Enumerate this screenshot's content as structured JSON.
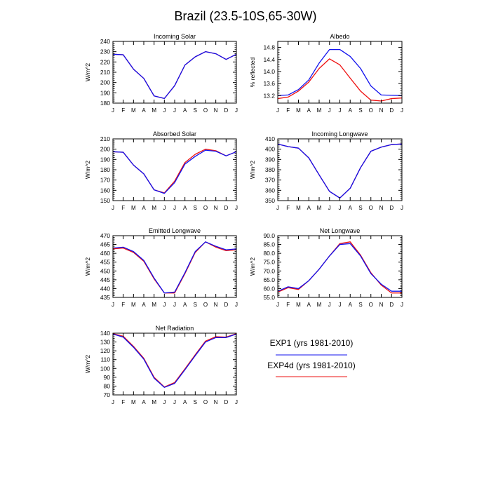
{
  "title": "Brazil (23.5-10S,65-30W)",
  "colors": {
    "exp1": "#1010ee",
    "exp4d": "#ee1010",
    "axis": "#000000"
  },
  "legend": [
    {
      "label": "EXP1 (yrs 1981-2010)",
      "color": "#1010ee"
    },
    {
      "label": "EXP4d (yrs 1981-2010)",
      "color": "#ee1010"
    }
  ],
  "chart_data": [
    {
      "type": "line",
      "title": "Incoming Solar",
      "ylabel": "W/m^2",
      "xlabel": "",
      "categories": [
        "J",
        "F",
        "M",
        "A",
        "M",
        "J",
        "J",
        "A",
        "S",
        "O",
        "N",
        "D",
        "J"
      ],
      "ylim": [
        180,
        240
      ],
      "yticks": [
        180,
        190,
        200,
        210,
        220,
        230,
        240
      ],
      "ytick_labels": [
        "180",
        "190",
        "200",
        "210",
        "220",
        "230",
        "240"
      ],
      "series": [
        {
          "name": "EXP4d (yrs 1981-2010)",
          "color": "#ee1010",
          "values": [
            227.5,
            227,
            213,
            204,
            187,
            184.5,
            197,
            217,
            225,
            230,
            228,
            222.5,
            227.5
          ]
        },
        {
          "name": "EXP1 (yrs 1981-2010)",
          "color": "#1010ee",
          "values": [
            227.5,
            227,
            213,
            204,
            187,
            184.5,
            197,
            217,
            225,
            230,
            228,
            222.5,
            227.5
          ]
        }
      ]
    },
    {
      "type": "line",
      "title": "Albedo",
      "ylabel": "% reflected",
      "xlabel": "",
      "categories": [
        "J",
        "F",
        "M",
        "A",
        "M",
        "J",
        "J",
        "A",
        "S",
        "O",
        "N",
        "D",
        "J"
      ],
      "ylim": [
        12.95,
        15.0
      ],
      "yticks": [
        13.2,
        13.6,
        14.0,
        14.4,
        14.8
      ],
      "ytick_labels": [
        "13.2",
        "13.6",
        "14.0",
        "14.4",
        "14.8"
      ],
      "series": [
        {
          "name": "EXP4d (yrs 1981-2010)",
          "color": "#ee1010",
          "values": [
            13.1,
            13.15,
            13.35,
            13.65,
            14.1,
            14.42,
            14.22,
            13.78,
            13.35,
            13.05,
            13.02,
            13.1,
            13.12
          ]
        },
        {
          "name": "EXP1 (yrs 1981-2010)",
          "color": "#1010ee",
          "values": [
            13.2,
            13.22,
            13.4,
            13.72,
            14.28,
            14.73,
            14.73,
            14.5,
            14.1,
            13.52,
            13.22,
            13.21,
            13.2
          ]
        }
      ]
    },
    {
      "type": "line",
      "title": "Absorbed Solar",
      "ylabel": "W/m^2",
      "xlabel": "",
      "categories": [
        "J",
        "F",
        "M",
        "A",
        "M",
        "J",
        "J",
        "A",
        "S",
        "O",
        "N",
        "D",
        "J"
      ],
      "ylim": [
        150,
        210
      ],
      "yticks": [
        150,
        160,
        170,
        180,
        190,
        200,
        210
      ],
      "ytick_labels": [
        "150",
        "160",
        "170",
        "180",
        "190",
        "200",
        "210"
      ],
      "series": [
        {
          "name": "EXP4d (yrs 1981-2010)",
          "color": "#ee1010",
          "values": [
            197.5,
            197,
            184.5,
            176,
            160.5,
            157.5,
            169,
            187,
            195,
            200,
            198.5,
            193.5,
            197.5
          ]
        },
        {
          "name": "EXP1 (yrs 1981-2010)",
          "color": "#1010ee",
          "values": [
            197.5,
            197,
            184.5,
            176,
            160.5,
            157,
            167.5,
            185.5,
            193,
            199,
            198,
            193.5,
            197.5
          ]
        }
      ]
    },
    {
      "type": "line",
      "title": "Incoming Longwave",
      "ylabel": "W/m^2",
      "xlabel": "",
      "categories": [
        "J",
        "F",
        "M",
        "A",
        "M",
        "J",
        "J",
        "A",
        "S",
        "O",
        "N",
        "D",
        "J"
      ],
      "ylim": [
        350,
        410
      ],
      "yticks": [
        350,
        360,
        370,
        380,
        390,
        400,
        410
      ],
      "ytick_labels": [
        "350",
        "360",
        "370",
        "380",
        "390",
        "400",
        "410"
      ],
      "series": [
        {
          "name": "EXP4d (yrs 1981-2010)",
          "color": "#ee1010",
          "values": [
            405,
            402.5,
            401,
            391.5,
            375,
            359,
            352.5,
            362,
            382,
            398,
            402,
            404.5,
            405
          ]
        },
        {
          "name": "EXP1 (yrs 1981-2010)",
          "color": "#1010ee",
          "values": [
            405,
            402.5,
            401,
            391.5,
            375,
            359,
            352.5,
            362,
            382,
            398,
            402,
            404.5,
            405
          ]
        }
      ]
    },
    {
      "type": "line",
      "title": "Emitted Longwave",
      "ylabel": "W/m^2",
      "xlabel": "",
      "categories": [
        "J",
        "F",
        "M",
        "A",
        "M",
        "J",
        "J",
        "A",
        "S",
        "O",
        "N",
        "D",
        "J"
      ],
      "ylim": [
        435,
        470
      ],
      "yticks": [
        435,
        440,
        445,
        450,
        455,
        460,
        465,
        470
      ],
      "ytick_labels": [
        "435",
        "440",
        "445",
        "450",
        "455",
        "460",
        "465",
        "470"
      ],
      "series": [
        {
          "name": "EXP4d (yrs 1981-2010)",
          "color": "#ee1010",
          "values": [
            462.5,
            463,
            460.5,
            455.5,
            445.5,
            437.5,
            437.5,
            448.5,
            460.5,
            466.5,
            463.5,
            461.5,
            462
          ]
        },
        {
          "name": "EXP1 (yrs 1981-2010)",
          "color": "#1010ee",
          "values": [
            463,
            463.5,
            461,
            456,
            446,
            437.5,
            438,
            449,
            461,
            466.5,
            464,
            462,
            462.5
          ]
        }
      ]
    },
    {
      "type": "line",
      "title": "Net Longwave",
      "ylabel": "W/m^2",
      "xlabel": "",
      "categories": [
        "J",
        "F",
        "M",
        "A",
        "M",
        "J",
        "J",
        "A",
        "S",
        "O",
        "N",
        "D",
        "J"
      ],
      "ylim": [
        55,
        90
      ],
      "yticks": [
        55,
        60,
        65,
        70,
        75,
        80,
        85,
        90
      ],
      "ytick_labels": [
        "55.0",
        "60.0",
        "65.0",
        "70.0",
        "75.0",
        "80.0",
        "85.0",
        "90.0"
      ],
      "series": [
        {
          "name": "EXP4d (yrs 1981-2010)",
          "color": "#ee1010",
          "values": [
            58,
            60.5,
            59.5,
            64.5,
            71,
            78.5,
            85.5,
            86.5,
            79,
            69,
            62,
            57.5,
            57.5
          ]
        },
        {
          "name": "EXP1 (yrs 1981-2010)",
          "color": "#1010ee",
          "values": [
            58.5,
            61,
            60,
            64.5,
            71,
            78.5,
            85,
            85.5,
            78.5,
            68.5,
            62.5,
            58.5,
            58.5
          ]
        }
      ]
    },
    {
      "type": "line",
      "title": "Net Radiation",
      "ylabel": "W/m^2",
      "xlabel": "",
      "categories": [
        "J",
        "F",
        "M",
        "A",
        "M",
        "J",
        "J",
        "A",
        "S",
        "O",
        "N",
        "D",
        "J"
      ],
      "ylim": [
        70,
        140
      ],
      "yticks": [
        70,
        80,
        90,
        100,
        110,
        120,
        130,
        140
      ],
      "ytick_labels": [
        "70",
        "80",
        "90",
        "100",
        "110",
        "120",
        "130",
        "140"
      ],
      "series": [
        {
          "name": "EXP4d (yrs 1981-2010)",
          "color": "#ee1010",
          "values": [
            139.5,
            136.5,
            125,
            111.5,
            90,
            79,
            84,
            99.5,
            115.5,
            131,
            136,
            135.5,
            139.5
          ]
        },
        {
          "name": "EXP1 (yrs 1981-2010)",
          "color": "#1010ee",
          "values": [
            139,
            135.5,
            124,
            110.5,
            89,
            78.5,
            83,
            98.5,
            114.5,
            130,
            135,
            135,
            139
          ]
        }
      ]
    }
  ]
}
